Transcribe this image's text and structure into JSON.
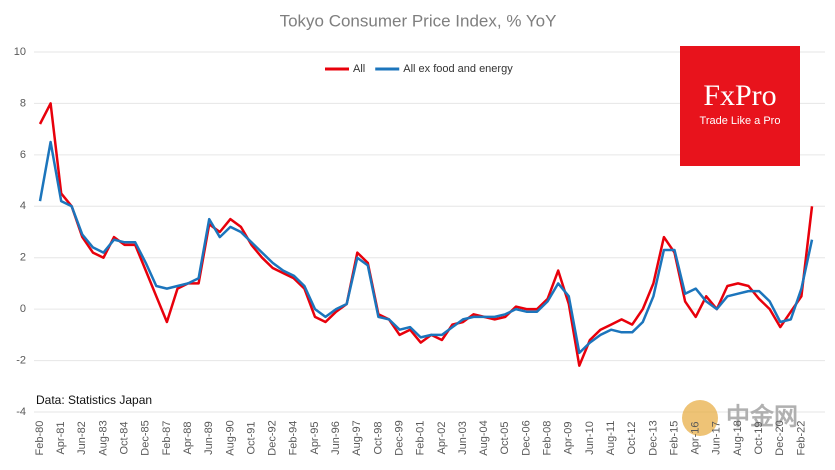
{
  "chart_data": {
    "type": "line",
    "title": "Tokyo Consumer Price Index, % YoY",
    "categories": [
      "Feb-80",
      null,
      "Apr-81",
      null,
      "Jun-82",
      null,
      "Aug-83",
      null,
      "Oct-84",
      null,
      "Dec-85",
      null,
      "Feb-87",
      null,
      "Apr-88",
      null,
      "Jun-89",
      null,
      "Aug-90",
      null,
      "Oct-91",
      null,
      "Dec-92",
      null,
      "Feb-94",
      null,
      "Apr-95",
      null,
      "Jun-96",
      null,
      "Aug-97",
      null,
      "Oct-98",
      null,
      "Dec-99",
      null,
      "Feb-01",
      null,
      "Apr-02",
      null,
      "Jun-03",
      null,
      "Aug-04",
      null,
      "Oct-05",
      null,
      "Dec-06",
      null,
      "Feb-08",
      null,
      "Apr-09",
      null,
      "Jun-10",
      null,
      "Aug-11",
      null,
      "Oct-12",
      null,
      "Dec-13",
      null,
      "Feb-15",
      null,
      "Apr-16",
      null,
      "Jun-17",
      null,
      "Aug-18",
      null,
      "Oct-19",
      null,
      "Dec-20",
      null,
      "Feb-22",
      null
    ],
    "series": [
      {
        "name": "All",
        "color": "#e8000b",
        "values": [
          7.2,
          8.0,
          4.5,
          4.0,
          2.8,
          2.2,
          2.0,
          2.8,
          2.5,
          2.5,
          1.5,
          0.5,
          -0.5,
          0.8,
          1.0,
          1.0,
          3.3,
          3.0,
          3.5,
          3.2,
          2.5,
          2.0,
          1.6,
          1.4,
          1.2,
          0.8,
          -0.3,
          -0.5,
          -0.1,
          0.2,
          2.2,
          1.8,
          -0.2,
          -0.4,
          -1.0,
          -0.8,
          -1.3,
          -1.0,
          -1.2,
          -0.6,
          -0.5,
          -0.2,
          -0.3,
          -0.4,
          -0.3,
          0.1,
          0.0,
          0.0,
          0.4,
          1.5,
          0.2,
          -2.2,
          -1.2,
          -0.8,
          -0.6,
          -0.4,
          -0.6,
          0.0,
          1.0,
          2.8,
          2.2,
          0.3,
          -0.3,
          0.5,
          0.0,
          0.9,
          1.0,
          0.9,
          0.4,
          0.0,
          -0.7,
          -0.1,
          0.5,
          4.0
        ]
      },
      {
        "name": "All ex food and energy",
        "color": "#1c75bc",
        "values": [
          4.2,
          6.5,
          4.2,
          4.0,
          2.9,
          2.4,
          2.2,
          2.7,
          2.6,
          2.6,
          1.8,
          0.9,
          0.8,
          0.9,
          1.0,
          1.2,
          3.5,
          2.8,
          3.2,
          3.0,
          2.6,
          2.2,
          1.8,
          1.5,
          1.3,
          0.9,
          0.0,
          -0.3,
          0.0,
          0.2,
          2.0,
          1.7,
          -0.3,
          -0.4,
          -0.8,
          -0.7,
          -1.1,
          -1.0,
          -1.0,
          -0.7,
          -0.4,
          -0.3,
          -0.3,
          -0.3,
          -0.2,
          0.0,
          -0.1,
          -0.1,
          0.3,
          1.0,
          0.5,
          -1.7,
          -1.3,
          -1.0,
          -0.8,
          -0.9,
          -0.9,
          -0.5,
          0.5,
          2.3,
          2.3,
          0.6,
          0.8,
          0.3,
          0.0,
          0.5,
          0.6,
          0.7,
          0.7,
          0.3,
          -0.5,
          -0.4,
          0.8,
          2.7
        ]
      }
    ],
    "ylim": [
      -4,
      10
    ],
    "yticks": [
      -4,
      -2,
      0,
      2,
      4,
      6,
      8,
      10
    ],
    "grid": true,
    "legend": "top",
    "annotation": "Data: Statistics Japan",
    "logo": {
      "brand": "FxPro",
      "tagline": "Trade Like a Pro"
    },
    "watermark": "中金网"
  }
}
